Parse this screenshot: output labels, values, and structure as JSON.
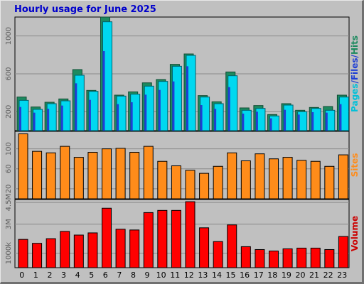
{
  "chart_data": {
    "type": "bar",
    "title": "Hourly usage for June 2025",
    "categories": [
      "0",
      "1",
      "2",
      "3",
      "4",
      "5",
      "6",
      "7",
      "8",
      "9",
      "10",
      "11",
      "12",
      "13",
      "14",
      "15",
      "16",
      "17",
      "18",
      "19",
      "20",
      "21",
      "22",
      "23"
    ],
    "panels": [
      {
        "key": "hits",
        "ylim": [
          0,
          1200
        ],
        "ticks": [
          {
            "value": 200,
            "label": "200"
          },
          {
            "value": 600,
            "label": "600"
          },
          {
            "value": 1000,
            "label": "1000"
          }
        ],
        "series": [
          {
            "name": "Hits",
            "color": "#1d8a5f",
            "values": [
              355,
              250,
              300,
              335,
              645,
              425,
              1200,
              375,
              410,
              505,
              540,
              700,
              810,
              370,
              305,
              620,
              240,
              265,
              170,
              285,
              215,
              245,
              255,
              375
            ]
          },
          {
            "name": "Files",
            "color": "#1f3fd4",
            "values": [
              250,
              190,
              230,
              265,
              500,
              325,
              840,
              280,
              300,
              380,
              430,
              520,
              680,
              270,
              230,
              460,
              180,
              200,
              130,
              220,
              170,
              195,
              190,
              280
            ]
          },
          {
            "name": "Pages",
            "color": "#00d8f0",
            "values": [
              320,
              225,
              285,
              315,
              585,
              415,
              1150,
              365,
              385,
              470,
              520,
              680,
              795,
              355,
              285,
              580,
              215,
              235,
              155,
              270,
              200,
              235,
              215,
              355
            ]
          }
        ],
        "axis_label_parts": [
          {
            "text": "Pages",
            "color": "#00c0d8"
          },
          {
            "text": "/",
            "color": "#1f3fd4"
          },
          {
            "text": "Files",
            "color": "#1f3fd4"
          },
          {
            "text": "/",
            "color": "#1f3fd4"
          },
          {
            "text": "Hits",
            "color": "#1d8a5f"
          }
        ]
      },
      {
        "key": "sites",
        "ylim": [
          0,
          135
        ],
        "ticks": [
          {
            "value": 20,
            "label": "20"
          },
          {
            "value": 60,
            "label": "60"
          },
          {
            "value": 100,
            "label": "100"
          }
        ],
        "series": [
          {
            "name": "Sites",
            "color": "#ff8c1a",
            "values": [
              130,
              95,
              92,
              105,
              83,
              93,
              100,
              101,
              93,
              105,
              75,
              66,
              57,
              51,
              65,
              92,
              76,
              90,
              80,
              83,
              77,
              75,
              65,
              88
            ]
          }
        ],
        "axis_label_parts": [
          {
            "text": "Sites",
            "color": "#ff8c1a"
          }
        ]
      },
      {
        "key": "volume",
        "ylim": [
          0,
          4700000
        ],
        "ticks": [
          {
            "value": 1000000,
            "label": "1000k"
          },
          {
            "value": 3000000,
            "label": "3M"
          },
          {
            "value": 4500000,
            "label": "4.5M"
          }
        ],
        "series": [
          {
            "name": "Volume",
            "color": "#ff0000",
            "values": [
              1950000,
              1680000,
              2000000,
              2500000,
              2250000,
              2400000,
              4100000,
              2650000,
              2600000,
              3800000,
              3950000,
              3950000,
              4550000,
              2750000,
              1800000,
              2950000,
              1450000,
              1250000,
              1150000,
              1300000,
              1350000,
              1350000,
              1250000,
              2150000
            ]
          }
        ],
        "axis_label_parts": [
          {
            "text": "Volume",
            "color": "#cc0000"
          }
        ]
      }
    ]
  }
}
